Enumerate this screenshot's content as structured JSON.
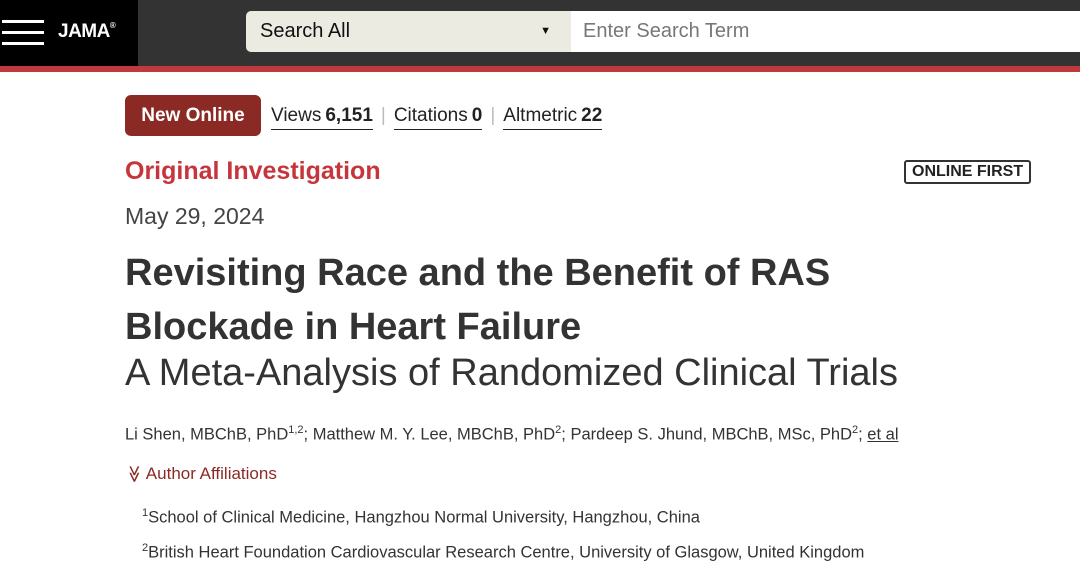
{
  "header": {
    "logo": "JAMA",
    "logo_mark": "®",
    "search_scope": "Search All",
    "search_placeholder": "Enter Search Term"
  },
  "colors": {
    "brand_red": "#c0393b",
    "badge": "#8b2a25"
  },
  "badge": "New Online",
  "metrics": [
    {
      "label": "Views",
      "value": "6,151"
    },
    {
      "label": "Citations",
      "value": "0"
    },
    {
      "label": "Altmetric",
      "value": "22"
    }
  ],
  "article": {
    "category": "Original Investigation",
    "status": "ONLINE FIRST",
    "date": "May 29, 2024",
    "title": "Revisiting Race and the Benefit of RAS Blockade in Heart Failure",
    "subtitle": "A Meta-Analysis of Randomized Clinical Trials",
    "authors": [
      {
        "name": "Li Shen, MBChB, PhD",
        "sup": "1,2"
      },
      {
        "name": "Matthew M. Y. Lee, MBChB, PhD",
        "sup": "2"
      },
      {
        "name": "Pardeep S. Jhund, MBChB, MSc, PhD",
        "sup": "2"
      }
    ],
    "et_al": "et al",
    "affiliations_toggle": "Author Affiliations",
    "affiliations": [
      {
        "sup": "1",
        "text": "School of Clinical Medicine, Hangzhou Normal University, Hangzhou, China"
      },
      {
        "sup": "2",
        "text": "British Heart Foundation Cardiovascular Research Centre, University of Glasgow, United Kingdom"
      }
    ]
  }
}
